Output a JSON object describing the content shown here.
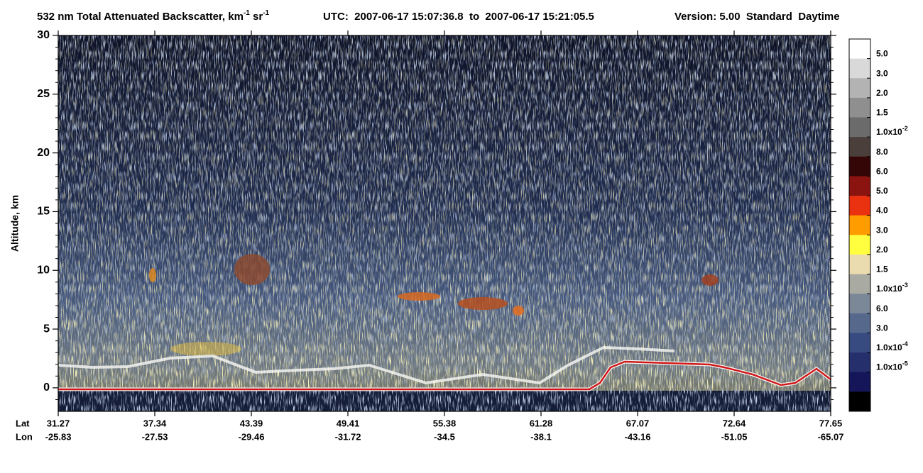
{
  "chart_data": {
    "type": "curtain",
    "title": {
      "parts": [
        "532 nm Total Attenuated Backscatter, km",
        "-1",
        " sr",
        "-1"
      ],
      "superscript": [
        false,
        true,
        false,
        true
      ]
    },
    "utc": "UTC:  2007-06-17 15:07:36.8  to  2007-06-17 15:21:05.5",
    "version": "Version: 5.00  Standard  Daytime",
    "ylabel": "Altitude, km",
    "ylim": [
      -2,
      30
    ],
    "yticks": [
      0,
      5,
      10,
      15,
      20,
      25,
      30
    ],
    "yticks_minor": [
      -1,
      1,
      2,
      3,
      4,
      6,
      7,
      8,
      9,
      11,
      12,
      13,
      14,
      16,
      17,
      18,
      19,
      21,
      22,
      23,
      24,
      26,
      27,
      28,
      29
    ],
    "x_row_labels": [
      "Lat",
      "Lon"
    ],
    "lat": [
      31.27,
      37.34,
      43.39,
      49.41,
      55.38,
      61.28,
      67.07,
      72.64,
      77.65
    ],
    "lon": [
      -25.83,
      -27.53,
      -29.46,
      -31.72,
      -34.5,
      -38.1,
      -43.16,
      -51.05,
      -65.07
    ],
    "colorbar": {
      "colors": [
        "#ffffff",
        "#d9d9d9",
        "#b3b3b3",
        "#8f8f8f",
        "#6b6b6b",
        "#4a3f3b",
        "#350606",
        "#8c1410",
        "#ea3210",
        "#ff9c00",
        "#ffff40",
        "#eadcae",
        "#a9aaa2",
        "#7b8898",
        "#56698c",
        "#384b80",
        "#252f6c",
        "#15165a",
        "#000000"
      ],
      "labels": [
        "5.0",
        "3.0",
        "2.0",
        "1.5",
        "1.0x10",
        "8.0",
        "6.0",
        "5.0",
        "4.0",
        "3.0",
        "2.0",
        "1.5",
        "1.0x10",
        "6.0",
        "3.0",
        "1.0x10",
        "1.0x10"
      ],
      "label_exponents": [
        null,
        null,
        null,
        null,
        "-2",
        null,
        null,
        null,
        null,
        null,
        null,
        null,
        "-3",
        null,
        null,
        "-4",
        "-5"
      ]
    }
  }
}
